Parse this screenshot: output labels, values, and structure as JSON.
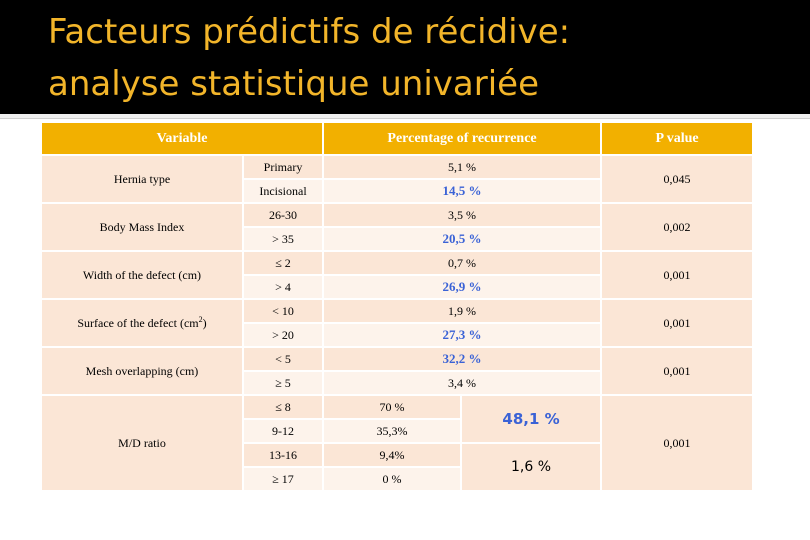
{
  "slide": {
    "title_line1": "Facteurs prédictifs de récidive:",
    "title_line2": "analyse statistique univariée"
  },
  "colors": {
    "title_text": "#f2b52a",
    "header_bg": "#f2b000",
    "row_dark": "#fbe6d6",
    "row_light": "#fdf3eb",
    "highlight_text": "#3a62d6"
  },
  "table": {
    "headers": {
      "variable": "Variable",
      "percentage": "Percentage  of recurrence",
      "pvalue": "P value"
    },
    "groups": [
      {
        "name": "Hernia type",
        "pvalue": "0,045",
        "rows": [
          {
            "category": "Primary",
            "value": "5,1 %"
          },
          {
            "category": "Incisional",
            "value": "14,5 %"
          }
        ]
      },
      {
        "name": "Body Mass Index",
        "pvalue": "0,002",
        "rows": [
          {
            "category": "26-30",
            "value": "3,5 %"
          },
          {
            "category": "> 35",
            "value": "20,5 %"
          }
        ]
      },
      {
        "name": "Width of the defect (cm)",
        "pvalue": "0,001",
        "rows": [
          {
            "category": "≤ 2",
            "value": "0,7 %"
          },
          {
            "category": "> 4",
            "value": "26,9 %"
          }
        ]
      },
      {
        "name": "Surface of the defect (cm",
        "name_sup": "2",
        "name_suffix": ")",
        "pvalue": "0,001",
        "rows": [
          {
            "category": "< 10",
            "value": "1,9 %"
          },
          {
            "category": "> 20",
            "value": "27,3 %"
          }
        ]
      },
      {
        "name": "Mesh overlapping (cm)",
        "pvalue": "0,001",
        "rows": [
          {
            "category": "< 5",
            "value": "32,2 %"
          },
          {
            "category": "≥ 5",
            "value": "3,4 %"
          }
        ]
      },
      {
        "name": "M/D ratio",
        "pvalue": "0,001",
        "rows": [
          {
            "category": "≤ 8",
            "value": "70 %"
          },
          {
            "category": "9-12",
            "value": "35,3%"
          },
          {
            "category": "13-16",
            "value": "9,4%"
          },
          {
            "category": "≥ 17",
            "value": "0 %"
          }
        ],
        "combined": [
          "48,1 %",
          "1,6 %"
        ]
      }
    ]
  }
}
